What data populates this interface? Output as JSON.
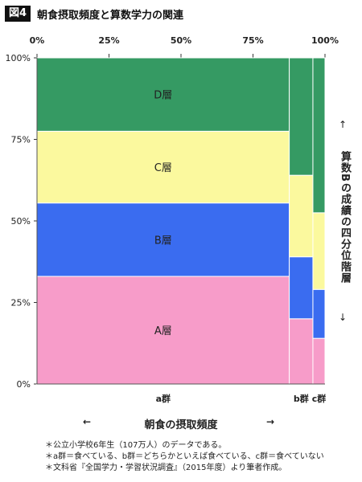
{
  "header": {
    "badge": "図4",
    "title": "朝食摂取頻度と算数学力の関連"
  },
  "chart_data": {
    "type": "mosaic",
    "title": "朝食摂取頻度と算数学力の関連",
    "x_ticks": [
      "0%",
      "25%",
      "50%",
      "75%",
      "100%"
    ],
    "y_ticks": [
      "0%",
      "25%",
      "50%",
      "75%",
      "100%"
    ],
    "xlabel": "朝食の摂取頻度",
    "ylabel": "算数Bの成績の四分位階層",
    "groups": [
      {
        "name": "a群",
        "width_share": 0.876,
        "segments": [
          0.33,
          0.225,
          0.22,
          0.225
        ]
      },
      {
        "name": "b群",
        "width_share": 0.082,
        "segments": [
          0.2,
          0.19,
          0.25,
          0.36
        ]
      },
      {
        "name": "c群",
        "width_share": 0.042,
        "segments": [
          0.14,
          0.15,
          0.235,
          0.475
        ]
      }
    ],
    "series": [
      {
        "name": "A層",
        "color": "#f79cc9"
      },
      {
        "name": "B層",
        "color": "#3a6cf0"
      },
      {
        "name": "C層",
        "color": "#fbf99e"
      },
      {
        "name": "D層",
        "color": "#359a63"
      }
    ],
    "ylim": [
      0,
      1
    ],
    "xlim": [
      0,
      1
    ]
  },
  "side": {
    "label": "算数Bの成績の四分位階層",
    "arrow_up": "↑",
    "arrow_down": "↓"
  },
  "xaxis": {
    "title": "朝食の摂取頻度",
    "arrow_left": "←",
    "arrow_right": "→"
  },
  "notes": [
    "＊公立小学校6年生（107万人）のデータである。",
    "＊a群＝食べている、b群＝どちらかといえば食べている、c群＝食べていない",
    "＊文科省『全国学力・学習状況調査』（2015年度）より筆者作成。"
  ]
}
